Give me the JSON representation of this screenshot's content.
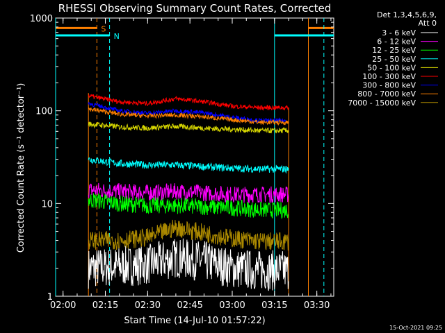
{
  "chart_data": {
    "type": "line",
    "title": "RHESSI Observing Summary Count Rates, Corrected",
    "xlabel": "Start Time (14-Jul-10 01:57:22)",
    "ylabel": "Corrected Count Rate (s⁻¹ detector⁻¹)",
    "y_scale": "log",
    "ylim": [
      1,
      1000
    ],
    "xlim": [
      "01:57:22",
      "03:36:00"
    ],
    "x_ticks": [
      "02:00",
      "02:15",
      "02:30",
      "02:45",
      "03:00",
      "03:15",
      "03:30"
    ],
    "y_ticks": [
      "1",
      "10",
      "100",
      "1000"
    ],
    "footer": "15-Oct-2021 09:25",
    "legend_header": [
      "Det 1,3,4,5,6,9,",
      "Att 0"
    ],
    "data_interval": [
      "02:09:00",
      "03:20:00"
    ],
    "series": [
      {
        "name": "3 - 6 keV",
        "color": "#ffffff",
        "x": [
          "02:09",
          "02:20",
          "02:30",
          "02:40",
          "02:50",
          "03:00",
          "03:10",
          "03:20"
        ],
        "y": [
          2.0,
          2.1,
          2.2,
          2.6,
          2.4,
          2.0,
          1.9,
          1.9
        ]
      },
      {
        "name": "6 - 12 keV",
        "color": "#ff00ff",
        "x": [
          "02:09",
          "02:20",
          "02:30",
          "02:40",
          "02:50",
          "03:00",
          "03:10",
          "03:20"
        ],
        "y": [
          14,
          13.5,
          13,
          13.5,
          13,
          12.5,
          12.5,
          12.5
        ]
      },
      {
        "name": "12 - 25 keV",
        "color": "#00ff00",
        "x": [
          "02:09",
          "02:20",
          "02:30",
          "02:40",
          "02:50",
          "03:00",
          "03:10",
          "03:20"
        ],
        "y": [
          11,
          10,
          9.5,
          9.5,
          9.2,
          9,
          8.5,
          8.5
        ]
      },
      {
        "name": "25 - 50 keV",
        "color": "#00ffff",
        "x": [
          "02:09",
          "02:20",
          "02:30",
          "02:40",
          "02:50",
          "03:00",
          "03:10",
          "03:20"
        ],
        "y": [
          30,
          27,
          26,
          26,
          25,
          24,
          23.5,
          23.5
        ]
      },
      {
        "name": "50 - 100 keV",
        "color": "#d8d800",
        "x": [
          "02:09",
          "02:20",
          "02:30",
          "02:40",
          "02:50",
          "03:00",
          "03:10",
          "03:20"
        ],
        "y": [
          72,
          67,
          65,
          68,
          65,
          63,
          61,
          61
        ]
      },
      {
        "name": "100 - 300 keV",
        "color": "#ff0000",
        "x": [
          "02:09",
          "02:20",
          "02:30",
          "02:40",
          "02:50",
          "03:00",
          "03:10",
          "03:20"
        ],
        "y": [
          145,
          125,
          120,
          135,
          125,
          112,
          108,
          108
        ]
      },
      {
        "name": "300 - 800 keV",
        "color": "#0000ff",
        "x": [
          "02:09",
          "02:20",
          "02:30",
          "02:40",
          "02:50",
          "03:00",
          "03:10",
          "03:20"
        ],
        "y": [
          120,
          100,
          94,
          100,
          95,
          85,
          78,
          78
        ]
      },
      {
        "name": "800 - 7000 keV",
        "color": "#ff8000",
        "x": [
          "02:09",
          "02:20",
          "02:30",
          "02:40",
          "02:50",
          "03:00",
          "03:10",
          "03:20"
        ],
        "y": [
          105,
          92,
          88,
          90,
          86,
          80,
          75,
          75
        ]
      },
      {
        "name": "7000 - 15000 keV",
        "color": "#aa8800",
        "x": [
          "02:09",
          "02:20",
          "02:30",
          "02:40",
          "02:50",
          "03:00",
          "03:10",
          "03:20"
        ],
        "y": [
          4.0,
          4.0,
          4.3,
          5.5,
          4.8,
          4.2,
          3.9,
          3.9
        ]
      }
    ],
    "annotations": [
      {
        "label": "S",
        "color": "#ff8000",
        "boundaries": [
          "02:12:00",
          "03:27:00"
        ],
        "bar_times": [
          [
            "01:57:22",
            "02:12:00"
          ],
          [
            "03:27:00",
            "03:36:00"
          ]
        ],
        "bar_y": 780
      },
      {
        "label": "N",
        "color": "#00ffff",
        "boundaries": [
          "01:57:22",
          "02:16:30",
          "03:15:00",
          "03:32:30"
        ],
        "bar_times": [
          [
            "01:57:22",
            "02:16:30"
          ],
          [
            "03:15:00",
            "03:36:00"
          ]
        ],
        "bar_y": 650
      }
    ]
  }
}
